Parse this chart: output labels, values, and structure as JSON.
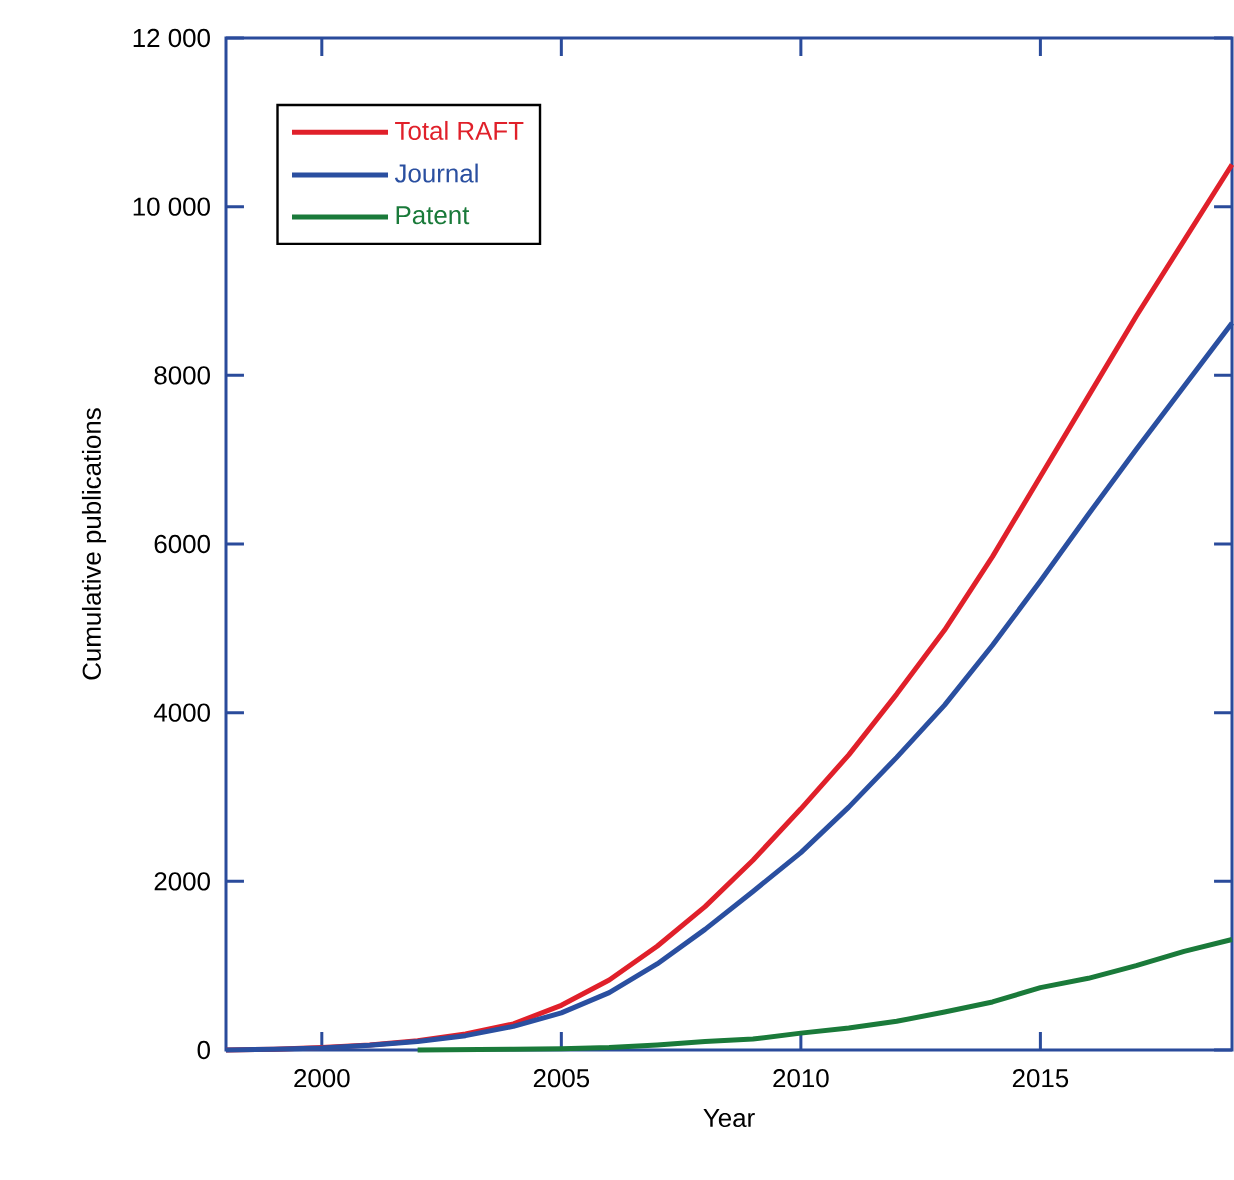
{
  "chart_data": {
    "type": "line",
    "xlabel": "Year",
    "ylabel": "Cumulative publications",
    "xlim": [
      1998,
      2019
    ],
    "ylim": [
      0,
      12000
    ],
    "xticks": [
      2000,
      2005,
      2010,
      2015
    ],
    "yticks": [
      0,
      2000,
      4000,
      6000,
      8000,
      {
        "value": 10000,
        "label": "10 000"
      },
      {
        "value": 12000,
        "label": "12 000"
      }
    ],
    "legend": "top left",
    "series": [
      {
        "name": "Total RAFT",
        "color": "#e0202a",
        "x": [
          1998,
          1999,
          2000,
          2001,
          2002,
          2003,
          2004,
          2005,
          2006,
          2007,
          2008,
          2009,
          2010,
          2011,
          2012,
          2013,
          2014,
          2015,
          2016,
          2017,
          2018,
          2019
        ],
        "values": [
          0,
          10,
          30,
          60,
          110,
          190,
          310,
          530,
          830,
          1230,
          1700,
          2250,
          2860,
          3500,
          4220,
          4980,
          5850,
          6800,
          7750,
          8700,
          9600,
          10500
        ]
      },
      {
        "name": "Journal",
        "color": "#2a4fa0",
        "x": [
          1998,
          1999,
          2000,
          2001,
          2002,
          2003,
          2004,
          2005,
          2006,
          2007,
          2008,
          2009,
          2010,
          2011,
          2012,
          2013,
          2014,
          2015,
          2016,
          2017,
          2018,
          2019
        ],
        "values": [
          0,
          8,
          25,
          55,
          100,
          170,
          280,
          440,
          680,
          1020,
          1430,
          1880,
          2340,
          2880,
          3470,
          4090,
          4800,
          5560,
          6350,
          7120,
          7870,
          8620
        ]
      },
      {
        "name": "Patent",
        "color": "#1a7a3a",
        "x": [
          2002,
          2003,
          2004,
          2005,
          2006,
          2007,
          2008,
          2009,
          2010,
          2011,
          2012,
          2013,
          2014,
          2015,
          2016,
          2017,
          2018,
          2019
        ],
        "values": [
          0,
          5,
          10,
          15,
          30,
          60,
          100,
          130,
          200,
          260,
          340,
          450,
          570,
          740,
          850,
          1000,
          1170,
          1310
        ]
      }
    ]
  }
}
